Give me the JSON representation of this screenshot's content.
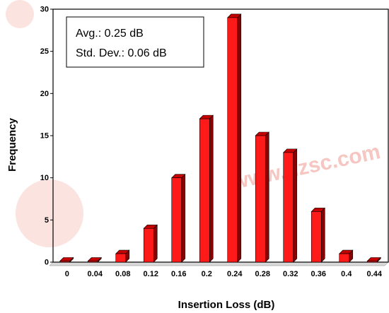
{
  "chart_data": {
    "type": "bar",
    "xlabel": "Insertion Loss (dB)",
    "ylabel": "Frequency",
    "categories": [
      "0",
      "0.04",
      "0.08",
      "0.12",
      "0.16",
      "0.2",
      "0.24",
      "0.28",
      "0.32",
      "0.36",
      "0.4",
      "0.44"
    ],
    "values": [
      0,
      0,
      1,
      4,
      10,
      17,
      29,
      15,
      13,
      6,
      1,
      0
    ],
    "ylim": [
      0,
      30
    ],
    "yticks": [
      0,
      5,
      10,
      15,
      20,
      25,
      30
    ],
    "grid": false,
    "legend": "none",
    "bar_color": "#ff1a1a",
    "bar_side_color": "#8b0000",
    "bar_top_color": "#c40000",
    "annotation": {
      "line1": "Avg.:  0.25 dB",
      "line2": "Std. Dev.:  0.06 dB"
    }
  },
  "watermark": {
    "text": "www.dzsc.com",
    "color": "#f6c6c2"
  }
}
